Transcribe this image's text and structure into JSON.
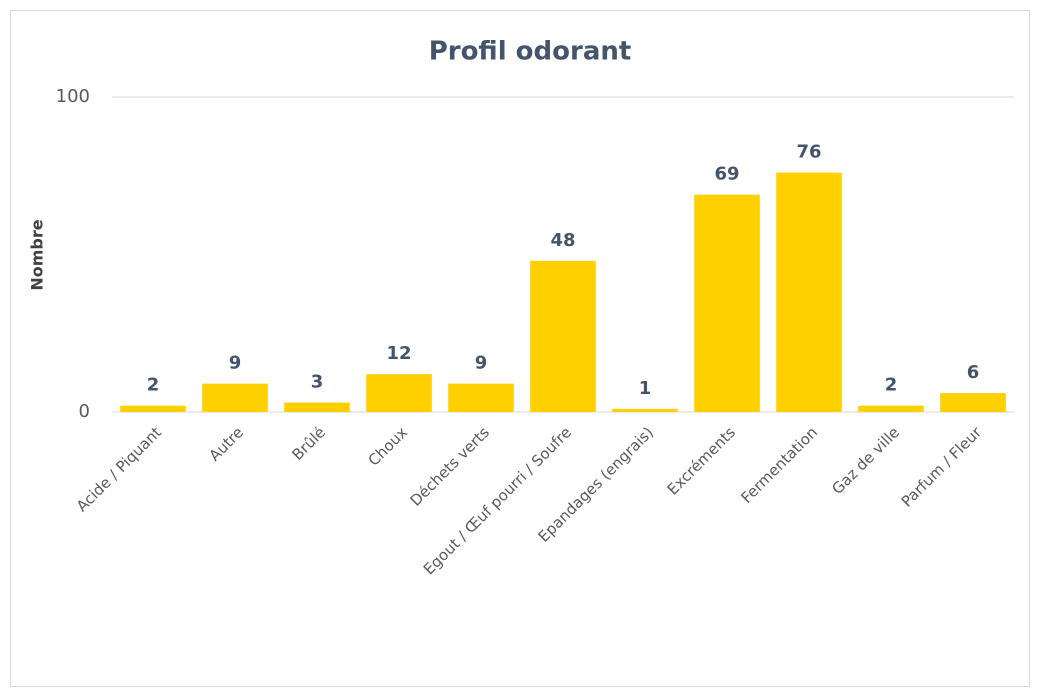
{
  "chart_data": {
    "type": "bar",
    "title": "Profil odorant",
    "y_label": "Nombre",
    "categories": [
      "Acide / Piquant",
      "Autre",
      "Brûlé",
      "Choux",
      "Déchets verts",
      "Egout / Œuf pourri / Soufre",
      "Epandages (engrais)",
      "Excréments",
      "Fermentation",
      "Gaz de ville",
      "Parfum / Fleur"
    ],
    "values": [
      2,
      9,
      3,
      12,
      9,
      48,
      1,
      69,
      76,
      2,
      6
    ],
    "color": "#ffd000",
    "ylim": [
      0,
      100
    ],
    "yticks": [
      0,
      100
    ],
    "grid": true
  }
}
